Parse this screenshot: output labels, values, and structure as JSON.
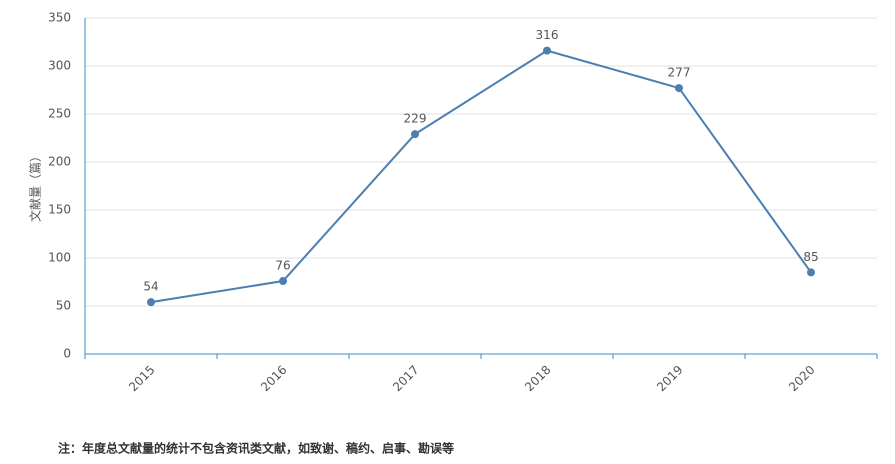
{
  "chart_data": {
    "type": "line",
    "y_axis_label": "文献量（篇）",
    "categories": [
      "2015",
      "2016",
      "2017",
      "2018",
      "2019",
      "2020"
    ],
    "values": [
      54,
      76,
      229,
      316,
      277,
      85
    ],
    "color": "#4a7fb0",
    "ylim": [
      0,
      350
    ],
    "yticks": [
      0,
      50,
      100,
      150,
      200,
      250,
      300,
      350
    ],
    "grid": true,
    "note": "注：年度总文献量的统计不包含资讯类文献，如致谢、稿约、启事、勘误等"
  }
}
